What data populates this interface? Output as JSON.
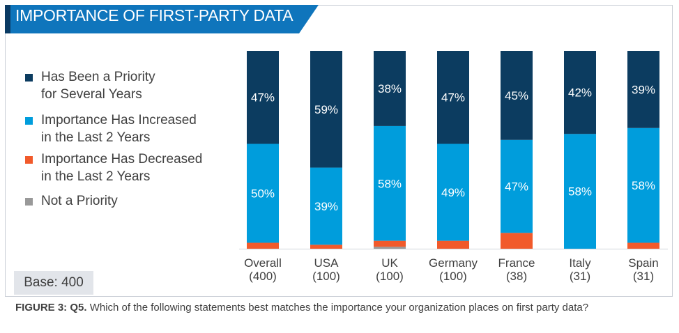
{
  "header": {
    "title": "IMPORTANCE OF FIRST-PARTY DATA"
  },
  "colors": {
    "title_bg": "#0f75bc",
    "title_accent": "#0a3a63",
    "dark_blue": "#0c3c60",
    "light_blue": "#009ddc",
    "orange": "#f15a2b",
    "gray": "#999999"
  },
  "legend": [
    {
      "line1": "Has Been a Priority",
      "line2": "for Several Years",
      "color": "#0c3c60"
    },
    {
      "line1": "Importance Has Increased",
      "line2": "in the Last 2 Years",
      "color": "#009ddc"
    },
    {
      "line1": "Importance Has Decreased",
      "line2": "in the Last 2 Years",
      "color": "#f15a2b"
    },
    {
      "line1": "Not a Priority",
      "line2": "",
      "color": "#999999"
    }
  ],
  "base_label": "Base: 400",
  "caption": {
    "bold": "FIGURE 3: Q5.",
    "text": " Which of the following statements best matches the importance your organization places on first party data?"
  },
  "chart_data": {
    "type": "bar",
    "stacked": true,
    "percent_stacked": true,
    "categories": [
      "Overall",
      "USA",
      "UK",
      "Germany",
      "France",
      "Italy",
      "Spain"
    ],
    "bases": [
      "(400)",
      "(100)",
      "(100)",
      "(100)",
      "(38)",
      "(31)",
      "(31)"
    ],
    "series": [
      {
        "name": "Not a Priority",
        "color": "#999999",
        "values": [
          0,
          0,
          1,
          0,
          0,
          0,
          0
        ]
      },
      {
        "name": "Importance Has Decreased in the Last 2 Years",
        "color": "#f15a2b",
        "values": [
          3,
          2,
          3,
          4,
          8,
          0,
          3
        ]
      },
      {
        "name": "Importance Has Increased in the Last 2 Years",
        "color": "#009ddc",
        "values": [
          50,
          39,
          58,
          49,
          47,
          58,
          58
        ]
      },
      {
        "name": "Has Been a Priority for Several Years",
        "color": "#0c3c60",
        "values": [
          47,
          59,
          38,
          47,
          45,
          42,
          39
        ]
      }
    ],
    "labels": {
      "Importance Has Increased in the Last 2 Years": [
        "50%",
        "39%",
        "58%",
        "49%",
        "47%",
        "58%",
        "58%"
      ],
      "Has Been a Priority for Several Years": [
        "47%",
        "59%",
        "38%",
        "47%",
        "45%",
        "42%",
        "39%"
      ]
    },
    "ylim": [
      0,
      100
    ],
    "grid": false,
    "legend_position": "left"
  }
}
